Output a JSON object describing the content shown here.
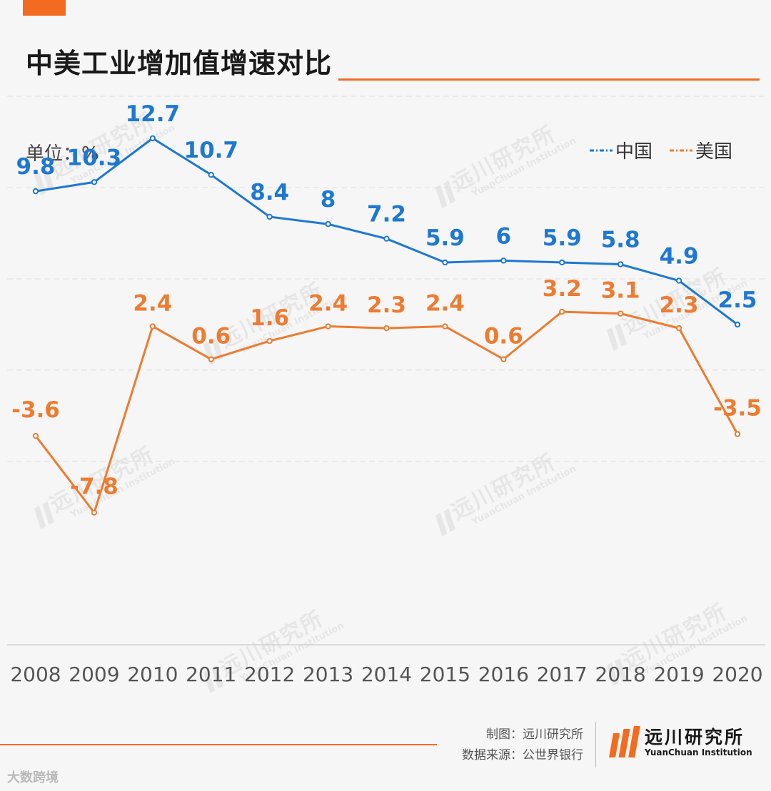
{
  "title": "中美工业增加值增速对比",
  "footer": {
    "made_by": "制图：远川研究所",
    "source": "数据来源：公世界银行"
  },
  "brand": {
    "cn": "远川研究所",
    "en": "YuanChuan Institution"
  },
  "watermark": {
    "cn": "远川研究所",
    "en": "YuanChuan Institution"
  },
  "source_logo": "大数跨境",
  "colors": {
    "accent": "#f26b21",
    "china": "#1e78d2",
    "usa": "#ee7b30",
    "grid": "#dddddd"
  },
  "chart_data": {
    "type": "line",
    "title": "中美工业增加值增速对比",
    "unit_label": "单位：%",
    "categories": [
      "2008",
      "2009",
      "2010",
      "2011",
      "2012",
      "2013",
      "2014",
      "2015",
      "2016",
      "2017",
      "2018",
      "2019",
      "2020"
    ],
    "series": [
      {
        "name": "中国",
        "values": [
          9.8,
          10.3,
          12.7,
          10.7,
          8.4,
          8,
          7.2,
          5.9,
          6,
          5.9,
          5.8,
          4.9,
          2.5
        ],
        "labels": [
          "9.8",
          "10.3",
          "12.7",
          "10.7",
          "8.4",
          "8",
          "7.2",
          "5.9",
          "6",
          "5.9",
          "5.8",
          "4.9",
          "2.5"
        ]
      },
      {
        "name": "美国",
        "values": [
          -3.6,
          -7.8,
          2.4,
          0.6,
          1.6,
          2.4,
          2.3,
          2.4,
          0.6,
          3.2,
          3.1,
          2.3,
          -3.5
        ],
        "labels": [
          "-3.6",
          "-7.8",
          "2.4",
          "0.6",
          "1.6",
          "2.4",
          "2.3",
          "2.4",
          "0.6",
          "3.2",
          "3.1",
          "2.3",
          "-3.5"
        ]
      }
    ],
    "ylim": [
      -10,
      15
    ],
    "grid": true,
    "legend": "top-right"
  }
}
